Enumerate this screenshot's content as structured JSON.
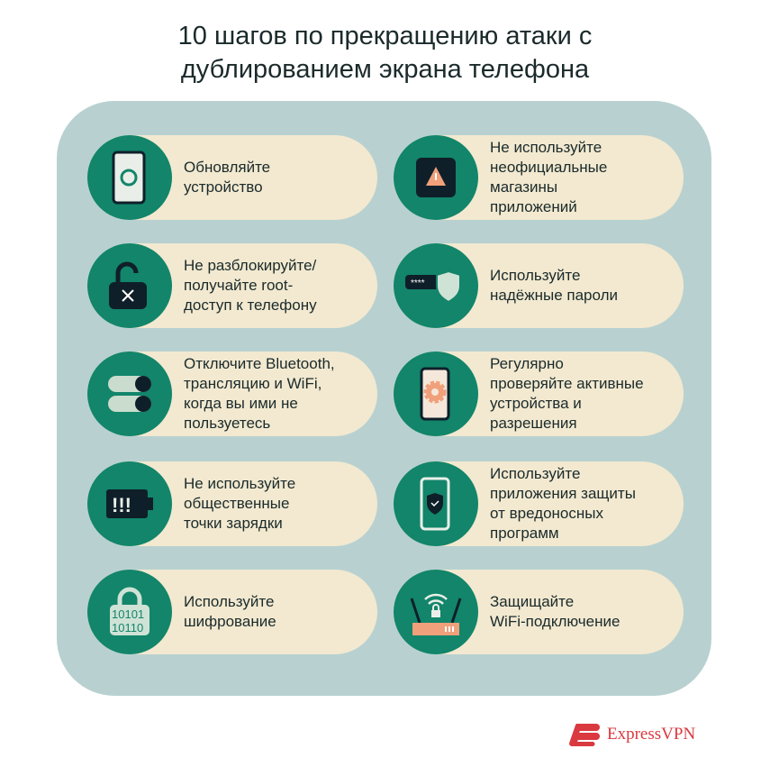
{
  "title_line1": "10 шагов по прекращению атаки с",
  "title_line2": "дублированием экрана телефона",
  "colors": {
    "panel": "#b8d1d0",
    "pill": "#f2e9d0",
    "circle": "#12856a",
    "accent": "#f0a07a",
    "dark": "#0f1f2a",
    "brand": "#da3940"
  },
  "items": [
    {
      "text": "Обновляйте\nустройство",
      "icon": "phone-refresh-icon"
    },
    {
      "text": "Не используйте\nнеофициальные\nмагазины\nприложений",
      "icon": "warning-icon"
    },
    {
      "text": "Не разблокируйте/\nполучайте root-\nдоступ к телефону",
      "icon": "unlocked-padlock-icon"
    },
    {
      "text": "Используйте\nнадёжные пароли",
      "icon": "password-shield-icon"
    },
    {
      "text": "Отключите Bluetooth,\nтрансляцию и WiFi,\nкогда вы ими не\nпользуетесь",
      "icon": "toggle-switches-icon"
    },
    {
      "text": "Регулярно\nпроверяйте активные\nустройства и\nразрешения",
      "icon": "phone-gear-icon"
    },
    {
      "text": "Не используйте\nобщественные\nточки зарядки",
      "icon": "battery-warning-icon"
    },
    {
      "text": "Используйте\nприложения защиты\nот вредоносных\nпрограмм",
      "icon": "phone-shield-icon"
    },
    {
      "text": "Используйте\nшифрование",
      "icon": "encryption-lock-icon"
    },
    {
      "text": "Защищайте\nWiFi-подключение",
      "icon": "wifi-router-icon"
    }
  ],
  "brand": "ExpressVPN"
}
